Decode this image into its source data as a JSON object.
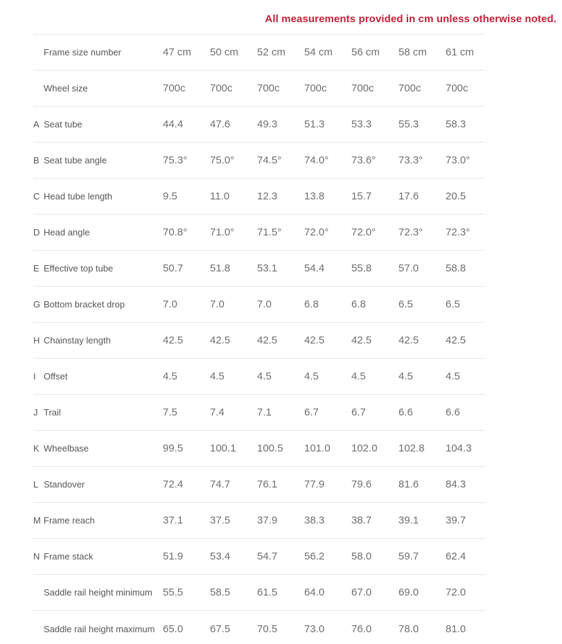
{
  "note": "All measurements provided in cm unless otherwise noted.",
  "colors": {
    "accent_red": "#c32138",
    "label_text": "#54565a",
    "value_text": "#6d6e71",
    "divider": "#e6e6e6",
    "background": "#ffffff"
  },
  "chart_data": {
    "type": "table",
    "title": "Bike frame geometry",
    "units_note": "All measurements provided in cm unless otherwise noted.",
    "header_row": {
      "letter": "",
      "label": "Frame size number",
      "values": [
        "47 cm",
        "50 cm",
        "52 cm",
        "54 cm",
        "56 cm",
        "58 cm",
        "61 cm"
      ]
    },
    "rows": [
      {
        "letter": "",
        "label": "Wheel size",
        "values": [
          "700c",
          "700c",
          "700c",
          "700c",
          "700c",
          "700c",
          "700c"
        ]
      },
      {
        "letter": "A",
        "label": "Seat tube",
        "values": [
          "44.4",
          "47.6",
          "49.3",
          "51.3",
          "53.3",
          "55.3",
          "58.3"
        ]
      },
      {
        "letter": "B",
        "label": "Seat tube angle",
        "values": [
          "75.3°",
          "75.0°",
          "74.5°",
          "74.0°",
          "73.6°",
          "73.3°",
          "73.0°"
        ]
      },
      {
        "letter": "C",
        "label": "Head tube length",
        "values": [
          "9.5",
          "11.0",
          "12.3",
          "13.8",
          "15.7",
          "17.6",
          "20.5"
        ]
      },
      {
        "letter": "D",
        "label": "Head angle",
        "values": [
          "70.8°",
          "71.0°",
          "71.5°",
          "72.0°",
          "72.0°",
          "72.3°",
          "72.3°"
        ]
      },
      {
        "letter": "E",
        "label": "Effective top tube",
        "values": [
          "50.7",
          "51.8",
          "53.1",
          "54.4",
          "55.8",
          "57.0",
          "58.8"
        ]
      },
      {
        "letter": "G",
        "label": "Bottom bracket drop",
        "values": [
          "7.0",
          "7.0",
          "7.0",
          "6.8",
          "6.8",
          "6.5",
          "6.5"
        ]
      },
      {
        "letter": "H",
        "label": "Chainstay length",
        "values": [
          "42.5",
          "42.5",
          "42.5",
          "42.5",
          "42.5",
          "42.5",
          "42.5"
        ]
      },
      {
        "letter": "I",
        "label": "Offset",
        "values": [
          "4.5",
          "4.5",
          "4.5",
          "4.5",
          "4.5",
          "4.5",
          "4.5"
        ]
      },
      {
        "letter": "J",
        "label": "Trail",
        "values": [
          "7.5",
          "7.4",
          "7.1",
          "6.7",
          "6.7",
          "6.6",
          "6.6"
        ]
      },
      {
        "letter": "K",
        "label": "Wheelbase",
        "values": [
          "99.5",
          "100.1",
          "100.5",
          "101.0",
          "102.0",
          "102.8",
          "104.3"
        ]
      },
      {
        "letter": "L",
        "label": "Standover",
        "values": [
          "72.4",
          "74.7",
          "76.1",
          "77.9",
          "79.6",
          "81.6",
          "84.3"
        ]
      },
      {
        "letter": "M",
        "label": "Frame reach",
        "values": [
          "37.1",
          "37.5",
          "37.9",
          "38.3",
          "38.7",
          "39.1",
          "39.7"
        ]
      },
      {
        "letter": "N",
        "label": "Frame stack",
        "values": [
          "51.9",
          "53.4",
          "54.7",
          "56.2",
          "58.0",
          "59.7",
          "62.4"
        ]
      },
      {
        "letter": "",
        "label": "Saddle rail height minimum",
        "values": [
          "55.5",
          "58.5",
          "61.5",
          "64.0",
          "67.0",
          "69.0",
          "72.0"
        ]
      },
      {
        "letter": "",
        "label": "Saddle rail height maximum",
        "values": [
          "65.0",
          "67.5",
          "70.5",
          "73.0",
          "76.0",
          "78.0",
          "81.0"
        ]
      }
    ]
  }
}
